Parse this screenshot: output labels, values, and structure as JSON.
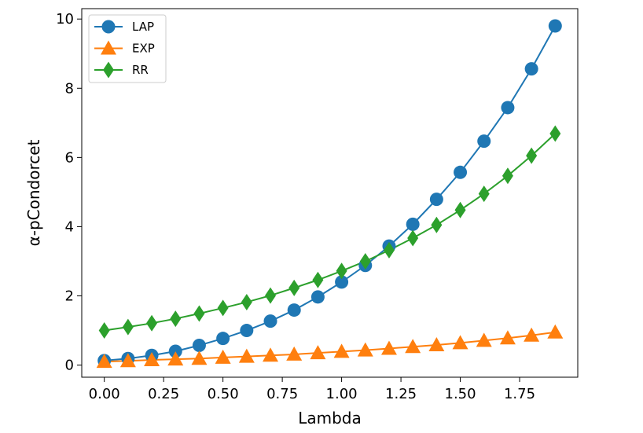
{
  "chart_data": {
    "type": "line",
    "title": "",
    "xlabel": "Lambda",
    "ylabel": "α-pCondorcet",
    "xlim": [
      -0.095,
      1.995
    ],
    "ylim": [
      -0.35,
      10.3
    ],
    "xticks": [
      0.0,
      0.25,
      0.5,
      0.75,
      1.0,
      1.25,
      1.5,
      1.75
    ],
    "xtick_labels": [
      "0.00",
      "0.25",
      "0.50",
      "0.75",
      "1.00",
      "1.25",
      "1.50",
      "1.75"
    ],
    "yticks": [
      0,
      2,
      4,
      6,
      8,
      10
    ],
    "ytick_labels": [
      "0",
      "2",
      "4",
      "6",
      "8",
      "10"
    ],
    "grid": false,
    "legend_position": "top-left",
    "x": [
      0.0,
      0.1,
      0.2,
      0.3,
      0.4,
      0.5,
      0.6,
      0.7,
      0.8,
      0.9,
      1.0,
      1.1,
      1.2,
      1.3,
      1.4,
      1.5,
      1.6,
      1.7,
      1.8,
      1.9
    ],
    "series": [
      {
        "name": "LAP",
        "color": "#1f77b4",
        "marker": "circle",
        "values": [
          0.13,
          0.19,
          0.28,
          0.4,
          0.57,
          0.77,
          1.0,
          1.27,
          1.59,
          1.97,
          2.4,
          2.88,
          3.44,
          4.07,
          4.79,
          5.57,
          6.47,
          7.44,
          8.56,
          9.8
        ]
      },
      {
        "name": "EXP",
        "color": "#ff7f0e",
        "marker": "triangle",
        "values": [
          0.1,
          0.12,
          0.15,
          0.17,
          0.19,
          0.22,
          0.25,
          0.28,
          0.31,
          0.35,
          0.39,
          0.43,
          0.48,
          0.53,
          0.58,
          0.64,
          0.71,
          0.78,
          0.86,
          0.95
        ]
      },
      {
        "name": "RR",
        "color": "#2ca02c",
        "marker": "diamond",
        "values": [
          1.0,
          1.1,
          1.21,
          1.34,
          1.49,
          1.65,
          1.82,
          2.01,
          2.23,
          2.46,
          2.72,
          3.0,
          3.32,
          3.67,
          4.05,
          4.48,
          4.95,
          5.47,
          6.05,
          6.69
        ]
      }
    ]
  }
}
